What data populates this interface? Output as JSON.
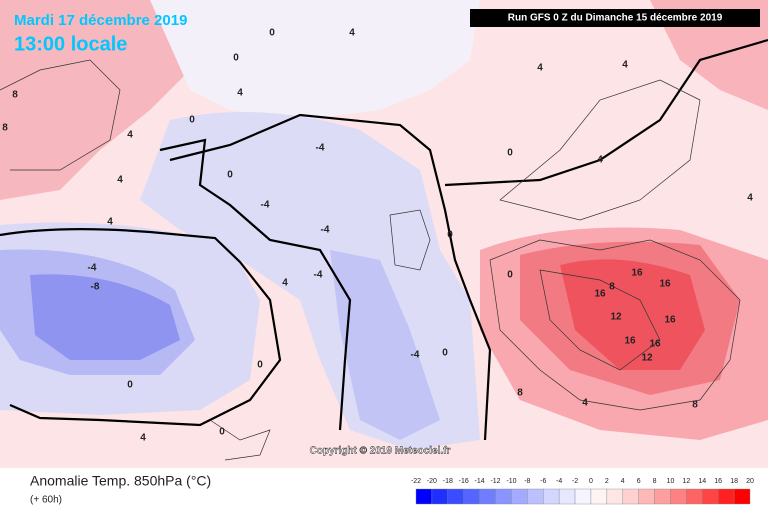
{
  "header": {
    "date": "Mardi 17 décembre 2019",
    "time": "13:00 locale",
    "run": "Run GFS 0 Z du Dimanche 15 décembre 2019"
  },
  "footer": {
    "title": "Anomalie Temp. 850hPa (°C)",
    "lead": "(+ 60h)",
    "copyright": "Copyright © 2019 Meteociel.fr"
  },
  "colorbar": {
    "ticks": [
      -22,
      -20,
      -18,
      -16,
      -14,
      -12,
      -10,
      -8,
      -6,
      -4,
      -2,
      0,
      2,
      4,
      6,
      8,
      10,
      12,
      14,
      16,
      18,
      20
    ],
    "colors": [
      "#0000ff",
      "#1f2fff",
      "#3a4cff",
      "#5565ff",
      "#6f7dff",
      "#8a94ff",
      "#a3aaff",
      "#bcc0ff",
      "#d3d6ff",
      "#e6e8ff",
      "#f4f5ff",
      "#fff4f4",
      "#ffe6e6",
      "#ffd0d0",
      "#ffb8b8",
      "#ff9e9e",
      "#ff8282",
      "#ff6464",
      "#ff4444",
      "#ff2020",
      "#ff0000"
    ]
  },
  "contour_labels": [
    0,
    4,
    0,
    4,
    0,
    4,
    4,
    0,
    -4,
    -4,
    -4,
    -4,
    -8,
    4,
    0,
    0,
    4,
    0,
    4,
    0,
    0,
    4,
    4,
    4,
    4,
    8,
    16,
    16,
    16,
    12,
    16,
    16,
    16,
    12,
    8,
    8,
    4,
    -4,
    0,
    8,
    8,
    -4,
    0
  ]
}
